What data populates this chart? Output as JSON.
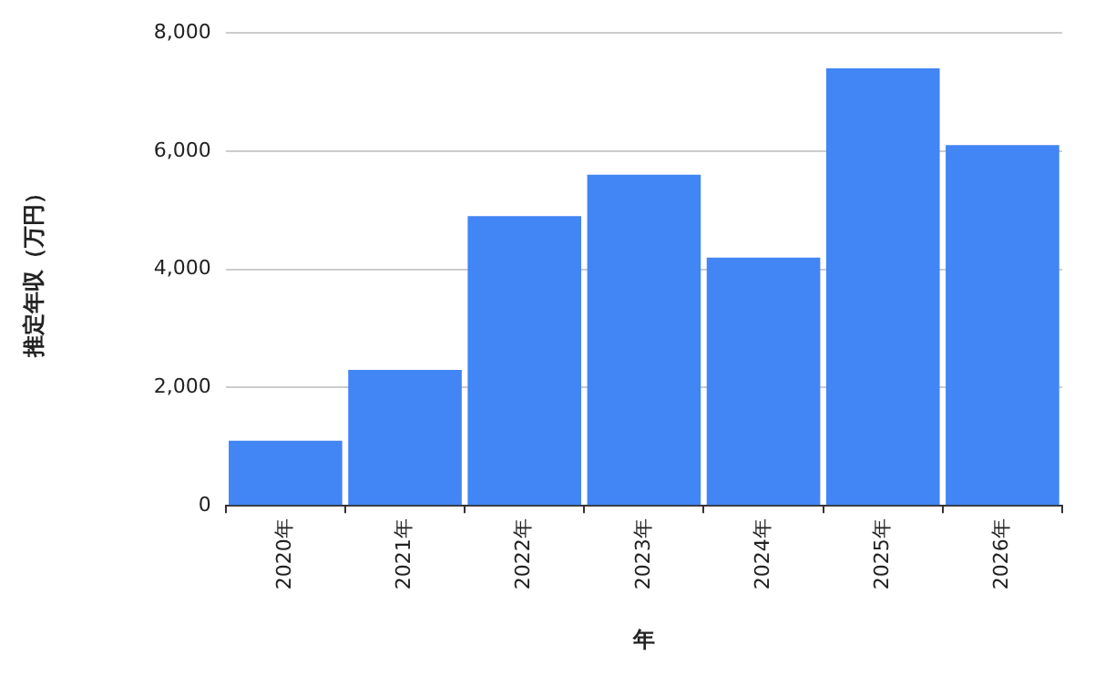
{
  "chart_data": {
    "type": "bar",
    "xlabel": "年",
    "ylabel": "推定年収（万円）",
    "categories": [
      "2020年",
      "2021年",
      "2022年",
      "2023年",
      "2024年",
      "2025年",
      "2026年"
    ],
    "values": [
      1100,
      2300,
      4900,
      5600,
      4200,
      7400,
      6100
    ],
    "color": "#4285f4",
    "ylim": [
      0,
      8000
    ],
    "yticks": [
      0,
      {
        "value": 2000,
        "label": "2,000"
      },
      {
        "value": 4000,
        "label": "4,000"
      },
      {
        "value": 6000,
        "label": "6,000"
      },
      {
        "value": 8000,
        "label": "8,000"
      }
    ],
    "grid": "y",
    "legend": false
  }
}
